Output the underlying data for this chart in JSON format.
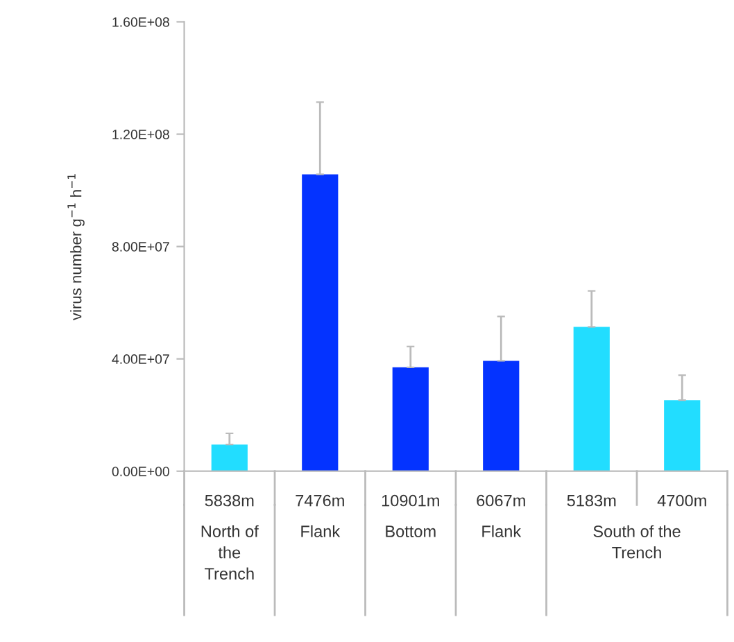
{
  "chart_data": {
    "type": "bar",
    "ylabel": "virus number g$^{−1}$ h$^{−1}$",
    "categories": [
      "5838m\nNorth of\nthe\nTrench",
      "7476m\nFlank",
      "10901m\nBottom",
      "6067m\nFlank",
      "5183m\nSouth of the\nTrench",
      "4700m"
    ],
    "values": [
      9500000.0,
      105700000.0,
      37000000.0,
      39300000.0,
      51400000.0,
      25300000.0
    ],
    "colors": [
      "#22ddff",
      "#0433ff",
      "#0433ff",
      "#0433ff",
      "#22ddff",
      "#22ddff"
    ],
    "errors": [
      [
        9500000.0,
        13500000.0
      ],
      [
        105700000.0,
        131400000.0
      ],
      [
        37000000.0,
        44400000.0
      ],
      [
        39300000.0,
        55100000.0
      ],
      [
        51400000.0,
        64200000.0
      ],
      [
        25300000.0,
        34200000.0
      ]
    ],
    "ylim": [
      0,
      160000000.0
    ],
    "yticks": [
      {
        "value": 0,
        "label": "0.00E+00"
      },
      {
        "value": 40000000.0,
        "label": "4.00E+07"
      },
      {
        "value": 80000000.0,
        "label": "8.00E+07"
      },
      {
        "value": 120000000.0,
        "label": "1.20E+08"
      },
      {
        "value": 160000000.0,
        "label": "1.60E+08"
      }
    ],
    "grid": false
  }
}
